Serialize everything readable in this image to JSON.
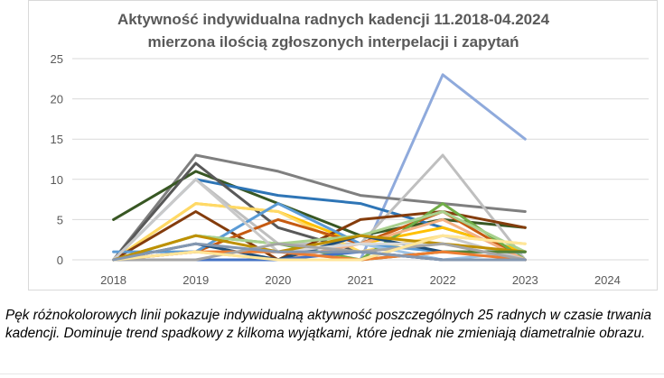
{
  "caption": "Pęk różnokolorowych linii pokazuje indywidualną aktywność poszczególnych 25 radnych w czasie trwania kadencji. Dominuje trend spadkowy z kilkoma wyjątkami, które jednak  nie zmieniają diametralnie obrazu.",
  "chart_data": {
    "type": "line",
    "title": [
      "Aktywność indywidualna radnych kadencji 11.2018-04.2024",
      "mierzona ilością zgłoszonych interpelacji i zapytań"
    ],
    "xlabel": "",
    "ylabel": "",
    "categories": [
      "2018",
      "2019",
      "2020",
      "2021",
      "2022",
      "2023",
      "2024"
    ],
    "ylim": [
      0,
      25
    ],
    "yticks": [
      0,
      5,
      10,
      15,
      20,
      25
    ],
    "grid": true,
    "legend": "none",
    "series": [
      {
        "color": "#8faadc",
        "values": [
          0,
          0,
          0,
          0,
          23,
          15,
          null
        ]
      },
      {
        "color": "#7f7f7f",
        "values": [
          0,
          13,
          11,
          8,
          7,
          6,
          null
        ]
      },
      {
        "color": "#385723",
        "values": [
          5,
          11,
          7,
          3,
          5,
          4,
          null
        ]
      },
      {
        "color": "#2e75b6",
        "values": [
          0,
          10,
          8,
          7,
          4,
          1,
          null
        ]
      },
      {
        "color": "#595959",
        "values": [
          0,
          12,
          4,
          1,
          0,
          0,
          null
        ]
      },
      {
        "color": "#bfbfbf",
        "values": [
          0,
          10,
          2,
          2,
          13,
          0,
          null
        ]
      },
      {
        "color": "#ffc000",
        "values": [
          0,
          7,
          6,
          2,
          4,
          1,
          null
        ]
      },
      {
        "color": "#ffd966",
        "values": [
          0,
          7,
          6,
          1,
          3,
          2,
          null
        ]
      },
      {
        "color": "#843c0c",
        "values": [
          0,
          6,
          0,
          5,
          6,
          4,
          null
        ]
      },
      {
        "color": "#c55a11",
        "values": [
          0,
          1,
          5,
          2,
          6,
          0,
          null
        ]
      },
      {
        "color": "#70ad47",
        "values": [
          0,
          3,
          2,
          0,
          7,
          0,
          null
        ]
      },
      {
        "color": "#5b9bd5",
        "values": [
          1,
          1,
          7,
          2,
          1,
          1,
          null
        ]
      },
      {
        "color": "#a9d18e",
        "values": [
          0,
          3,
          2,
          3,
          6,
          1,
          null
        ]
      },
      {
        "color": "#9dc3e6",
        "values": [
          0,
          1,
          1,
          2,
          0,
          1,
          null
        ]
      },
      {
        "color": "#f4b183",
        "values": [
          0,
          1,
          0,
          2,
          5,
          0,
          null
        ]
      },
      {
        "color": "#1f4e79",
        "values": [
          0,
          2,
          0,
          3,
          1,
          1,
          null
        ]
      },
      {
        "color": "#d9d9d9",
        "values": [
          0,
          1,
          1,
          2,
          2,
          0,
          null
        ]
      },
      {
        "color": "#c9c9c9",
        "values": [
          0,
          10,
          1,
          0,
          3,
          0,
          null
        ]
      },
      {
        "color": "#bf9000",
        "values": [
          0,
          3,
          1,
          3,
          2,
          1,
          null
        ]
      },
      {
        "color": "#548235",
        "values": [
          0,
          0,
          0,
          0,
          1,
          1,
          null
        ]
      },
      {
        "color": "#4472c4",
        "values": [
          0,
          0,
          0,
          1,
          0,
          0,
          null
        ]
      },
      {
        "color": "#ed7d31",
        "values": [
          0,
          1,
          1,
          0,
          1,
          0,
          null
        ]
      },
      {
        "color": "#a5a5a5",
        "values": [
          0,
          0,
          2,
          1,
          2,
          0,
          null
        ]
      },
      {
        "color": "#ffe699",
        "values": [
          0,
          1,
          0,
          0,
          3,
          2,
          null
        ]
      },
      {
        "color": "#8497b0",
        "values": [
          0,
          2,
          1,
          1,
          0,
          0,
          null
        ]
      }
    ]
  }
}
